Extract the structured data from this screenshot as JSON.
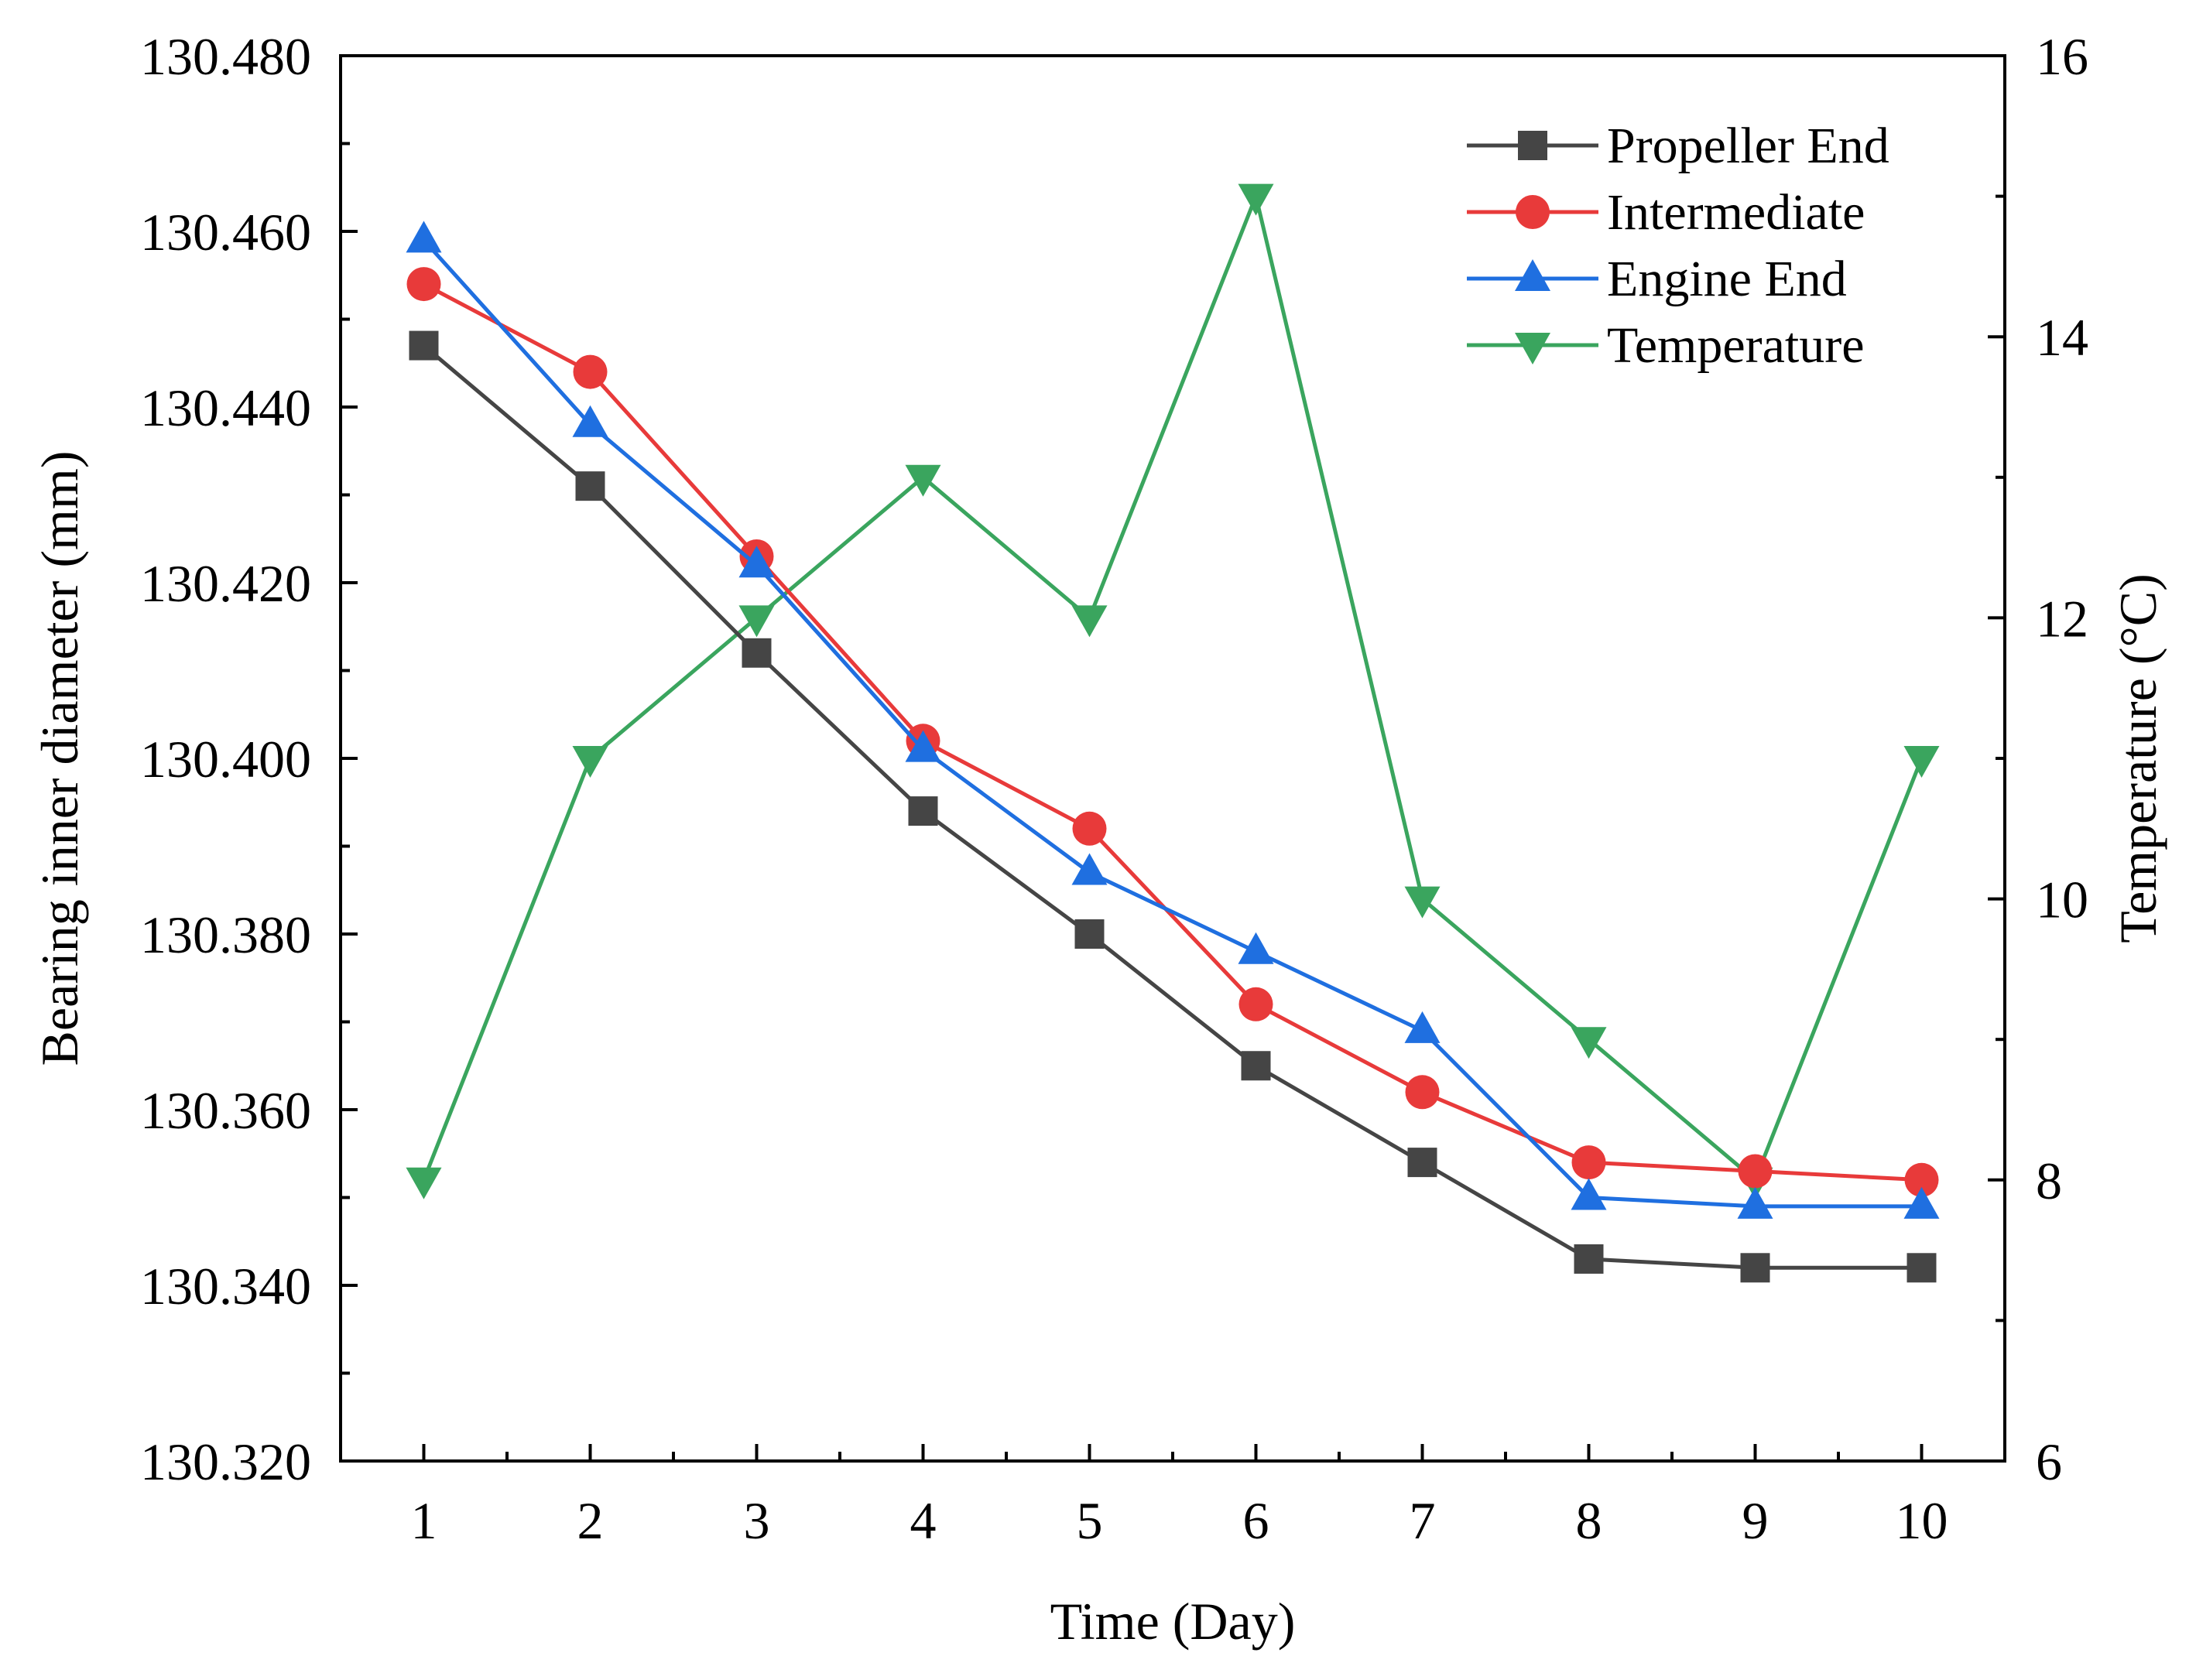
{
  "chart_data": {
    "type": "line",
    "xlabel": "Time (Day)",
    "ylabel": "Bearing inner diameter (mm)",
    "y2label": "Temperature (°C)",
    "x": [
      1,
      2,
      3,
      4,
      5,
      6,
      7,
      8,
      9,
      10
    ],
    "x_ticks": [
      "1",
      "2",
      "3",
      "4",
      "5",
      "6",
      "7",
      "8",
      "9",
      "10"
    ],
    "ylim": [
      130.32,
      130.48
    ],
    "y_ticks": [
      "130.320",
      "130.340",
      "130.360",
      "130.380",
      "130.400",
      "130.420",
      "130.440",
      "130.460",
      "130.480"
    ],
    "y2lim": [
      6,
      16
    ],
    "y2_ticks": [
      "6",
      "8",
      "10",
      "12",
      "14",
      "16"
    ],
    "grid": false,
    "legend_position": "top-right",
    "series": [
      {
        "name": "Propeller End",
        "axis": "left",
        "marker": "square",
        "color": "#454545",
        "values": [
          130.447,
          130.431,
          130.412,
          130.394,
          130.38,
          130.365,
          130.354,
          130.343,
          130.342,
          130.342
        ]
      },
      {
        "name": "Intermediate",
        "axis": "left",
        "marker": "circle",
        "color": "#e83a3a",
        "values": [
          130.454,
          130.444,
          130.423,
          130.402,
          130.392,
          130.372,
          130.362,
          130.354,
          130.353,
          130.352
        ]
      },
      {
        "name": "Engine End",
        "axis": "left",
        "marker": "triangle-up",
        "color": "#1f6fe0",
        "values": [
          130.459,
          130.438,
          130.422,
          130.401,
          130.387,
          130.378,
          130.369,
          130.35,
          130.349,
          130.349
        ]
      },
      {
        "name": "Temperature",
        "axis": "right",
        "marker": "triangle-down",
        "color": "#3aa55e",
        "values": [
          8,
          11,
          12,
          13,
          12,
          15,
          10,
          9,
          8,
          11
        ]
      }
    ]
  }
}
